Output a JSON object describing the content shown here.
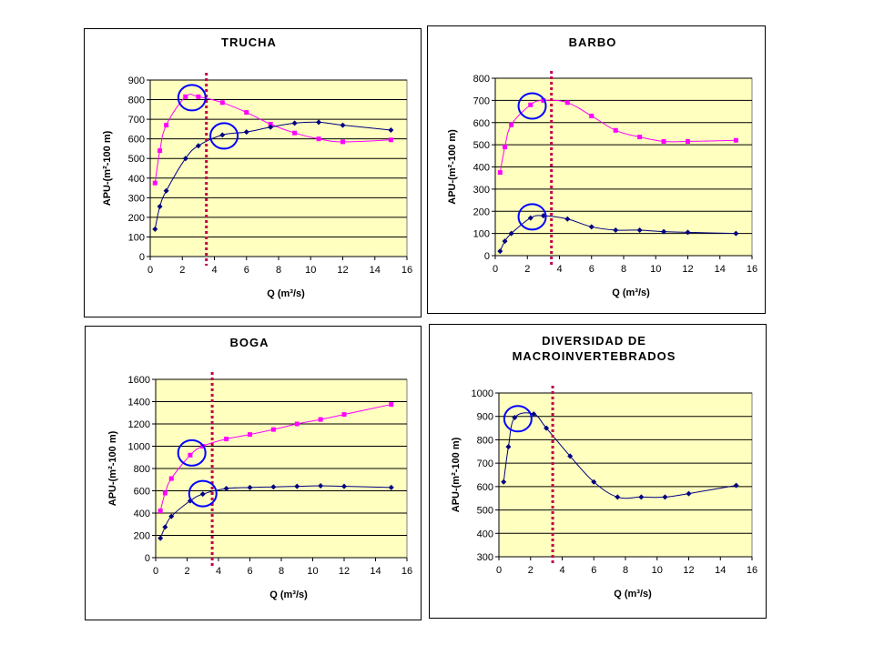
{
  "chart_data": [
    {
      "type": "line",
      "title": [
        "TRUCHA"
      ],
      "xlabel": "Q (m³/s)",
      "ylabel": "APU-(m²-100 m)",
      "xlim": [
        0,
        16
      ],
      "ylim": [
        0,
        900
      ],
      "xticks": [
        0,
        2,
        4,
        6,
        8,
        10,
        12,
        14,
        16
      ],
      "yticks": [
        0,
        100,
        200,
        300,
        400,
        500,
        600,
        700,
        800,
        900
      ],
      "grid": "horizontal",
      "plot_bg": "#ffffc0",
      "reference_line_x": 3.5,
      "series": [
        {
          "color": "#ff00ff",
          "marker": "square",
          "x": [
            0.3,
            0.6,
            1,
            2.2,
            3,
            4.5,
            6,
            7.5,
            9,
            10.5,
            12,
            15
          ],
          "y": [
            375,
            540,
            670,
            815,
            815,
            785,
            735,
            675,
            630,
            600,
            585,
            595
          ]
        },
        {
          "color": "#000080",
          "marker": "diamond",
          "x": [
            0.3,
            0.6,
            1,
            2.2,
            3,
            4.5,
            6,
            7.5,
            9,
            10.5,
            12,
            15
          ],
          "y": [
            140,
            255,
            335,
            500,
            565,
            620,
            635,
            660,
            680,
            685,
            670,
            645
          ]
        }
      ],
      "circles": [
        {
          "x": 2.6,
          "y": 810
        },
        {
          "x": 4.6,
          "y": 615
        }
      ]
    },
    {
      "type": "line",
      "title": [
        "BARBO"
      ],
      "xlabel": "Q (m³/s)",
      "ylabel": "APU-(m²-100 m)",
      "xlim": [
        0,
        16
      ],
      "ylim": [
        0,
        800
      ],
      "xticks": [
        0,
        2,
        4,
        6,
        8,
        10,
        12,
        14,
        16
      ],
      "yticks": [
        0,
        100,
        200,
        300,
        400,
        500,
        600,
        700,
        800
      ],
      "grid": "horizontal",
      "plot_bg": "#ffffc0",
      "reference_line_x": 3.5,
      "series": [
        {
          "color": "#ff00ff",
          "marker": "square",
          "x": [
            0.3,
            0.6,
            1,
            2.2,
            3,
            4.5,
            6,
            7.5,
            9,
            10.5,
            12,
            15
          ],
          "y": [
            375,
            490,
            590,
            680,
            700,
            690,
            630,
            565,
            535,
            515,
            515,
            520
          ]
        },
        {
          "color": "#000080",
          "marker": "diamond",
          "x": [
            0.3,
            0.6,
            1,
            2.2,
            3,
            4.5,
            6,
            7.5,
            9,
            10.5,
            12,
            15
          ],
          "y": [
            20,
            65,
            100,
            170,
            180,
            165,
            130,
            115,
            115,
            108,
            105,
            100
          ]
        }
      ],
      "circles": [
        {
          "x": 2.3,
          "y": 675
        },
        {
          "x": 2.3,
          "y": 175
        }
      ]
    },
    {
      "type": "line",
      "title": [
        "BOGA"
      ],
      "xlabel": "Q (m³/s)",
      "ylabel": "APU-(m²-100 m)",
      "xlim": [
        0,
        16
      ],
      "ylim": [
        0,
        1600
      ],
      "xticks": [
        0,
        2,
        4,
        6,
        8,
        10,
        12,
        14,
        16
      ],
      "yticks": [
        0,
        200,
        400,
        600,
        800,
        1000,
        1200,
        1400,
        1600
      ],
      "grid": "horizontal",
      "plot_bg": "#ffffc0",
      "reference_line_x": 3.6,
      "series": [
        {
          "color": "#ff00ff",
          "marker": "square",
          "x": [
            0.3,
            0.6,
            1,
            2.2,
            3,
            4.5,
            6,
            7.5,
            9,
            10.5,
            12,
            15
          ],
          "y": [
            420,
            580,
            710,
            920,
            1000,
            1065,
            1105,
            1150,
            1200,
            1240,
            1285,
            1375
          ]
        },
        {
          "color": "#000080",
          "marker": "diamond",
          "x": [
            0.3,
            0.6,
            1,
            2.2,
            3,
            4.5,
            6,
            7.5,
            9,
            10.5,
            12,
            15
          ],
          "y": [
            175,
            275,
            370,
            510,
            570,
            620,
            630,
            635,
            640,
            645,
            640,
            630
          ]
        }
      ],
      "circles": [
        {
          "x": 2.3,
          "y": 940
        },
        {
          "x": 3.0,
          "y": 575
        }
      ]
    },
    {
      "type": "line",
      "title": [
        "DIVERSIDAD DE",
        "MACROINVERTEBRADOS"
      ],
      "xlabel": "Q (m³/s)",
      "ylabel": "APU-(m²-100 m)",
      "xlim": [
        0,
        16
      ],
      "ylim": [
        300,
        1000
      ],
      "xticks": [
        0,
        2,
        4,
        6,
        8,
        10,
        12,
        14,
        16
      ],
      "yticks": [
        300,
        400,
        500,
        600,
        700,
        800,
        900,
        1000
      ],
      "grid": "horizontal",
      "plot_bg": "#ffffc0",
      "reference_line_x": 3.4,
      "series": [
        {
          "color": "#000080",
          "marker": "diamond",
          "x": [
            0.3,
            0.6,
            1,
            2.2,
            3,
            4.5,
            6,
            7.5,
            9,
            10.5,
            12,
            15
          ],
          "y": [
            620,
            770,
            895,
            910,
            850,
            730,
            620,
            555,
            555,
            555,
            570,
            605
          ]
        }
      ],
      "circles": [
        {
          "x": 1.2,
          "y": 890
        }
      ]
    }
  ]
}
